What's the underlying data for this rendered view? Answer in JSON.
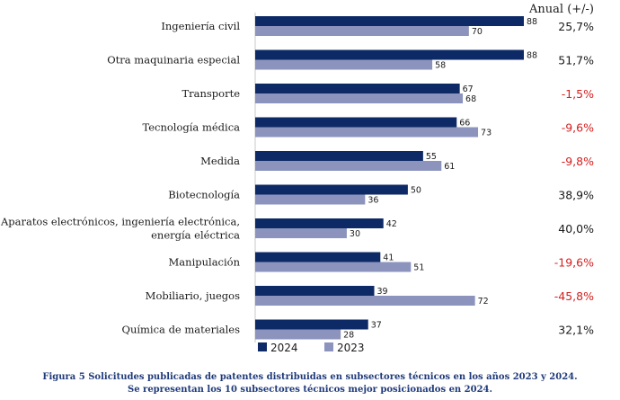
{
  "chart_data": {
    "type": "bar",
    "orientation": "horizontal",
    "categories": [
      [
        "Ingeniería civil"
      ],
      [
        "Otra maquinaria especial"
      ],
      [
        "Transporte"
      ],
      [
        "Tecnología médica"
      ],
      [
        "Medida"
      ],
      [
        "Biotecnología"
      ],
      [
        "Aparatos electrónicos, ingeniería electrónica,",
        "energía eléctrica"
      ],
      [
        "Manipulación"
      ],
      [
        "Mobiliario, juegos"
      ],
      [
        "Química de materiales"
      ]
    ],
    "series": [
      {
        "name": "2024",
        "color": "#0e2a66",
        "values": [
          88,
          88,
          67,
          66,
          55,
          50,
          42,
          41,
          39,
          37
        ]
      },
      {
        "name": "2023",
        "color": "#8c94bd",
        "values": [
          70,
          58,
          68,
          73,
          61,
          36,
          30,
          51,
          72,
          28
        ]
      }
    ],
    "annual_header": "Anual (+/-)",
    "annual_change": [
      "25,7%",
      "51,7%",
      "-1,5%",
      "-9,6%",
      "-9,8%",
      "38,9%",
      "40,0%",
      "-19,6%",
      "-45,8%",
      "32,1%"
    ],
    "negative_color": "#d42020",
    "positive_color": "#1a1a1a",
    "xlim": [
      0,
      88
    ],
    "legend_position": "bottom",
    "grid": false
  },
  "caption": {
    "line1": "Figura 5   Solicitudes publicadas de patentes distribuidas en subsectores técnicos en los años 2023 y 2024.",
    "line2": "Se representan los 10 subsectores técnicos mejor posicionados en 2024."
  }
}
